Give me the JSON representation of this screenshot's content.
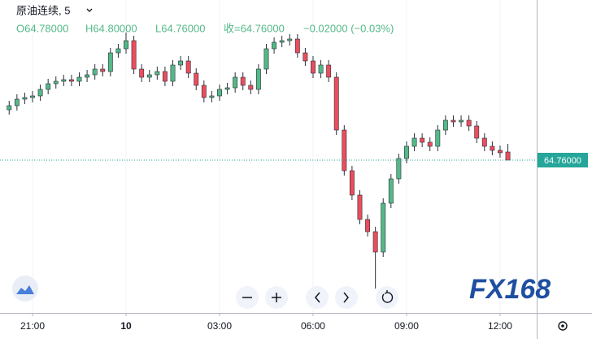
{
  "header": {
    "symbol": "原油连续, 5",
    "open": "O64.78000",
    "high": "H64.80000",
    "low": "L64.76000",
    "close": "收=64.76000",
    "change": "−0.02000 (−0.03%)"
  },
  "watermark": "FX168",
  "chart_data": {
    "type": "candlestick",
    "x": [
      -3.75,
      -3.5,
      -3.25,
      -3,
      -2.75,
      -2.5,
      -2.25,
      -2,
      -1.75,
      -1.5,
      -1.25,
      -1,
      -0.75,
      -0.5,
      -0.25,
      0,
      0.25,
      0.5,
      0.75,
      1,
      1.25,
      1.5,
      1.75,
      2,
      2.25,
      2.5,
      2.75,
      3,
      3.25,
      3.5,
      3.75,
      4,
      4.25,
      4.5,
      4.75,
      5,
      5.25,
      5.5,
      5.75,
      6,
      6.25,
      6.5,
      6.75,
      7,
      7.25,
      7.5,
      7.75,
      8,
      8.25,
      8.5,
      8.75,
      9,
      9.25,
      9.5,
      9.75,
      10,
      10.25,
      10.5,
      10.75,
      11,
      11.25,
      11.5,
      11.75,
      12,
      12.25
    ],
    "open": [
      64.884,
      64.894,
      64.91,
      64.914,
      64.918,
      64.934,
      64.948,
      64.954,
      64.958,
      64.954,
      64.964,
      64.97,
      64.984,
      64.978,
      65.024,
      65.034,
      65.054,
      64.984,
      64.964,
      64.97,
      64.978,
      64.954,
      64.994,
      65.004,
      64.974,
      64.944,
      64.914,
      64.918,
      64.934,
      64.938,
      64.964,
      64.944,
      64.934,
      64.984,
      65.034,
      65.05,
      65.054,
      65.058,
      65.024,
      65.004,
      64.974,
      64.994,
      64.964,
      64.834,
      64.734,
      64.674,
      64.614,
      64.584,
      64.534,
      64.654,
      64.714,
      64.764,
      64.794,
      64.814,
      64.804,
      64.794,
      64.834,
      64.858,
      64.854,
      64.858,
      64.844,
      64.814,
      64.794,
      64.784,
      64.78
    ],
    "high": [
      64.906,
      64.922,
      64.926,
      64.93,
      64.946,
      64.96,
      64.966,
      64.97,
      64.97,
      64.976,
      64.982,
      64.996,
      64.996,
      65.036,
      65.046,
      65.074,
      65.066,
      64.996,
      64.982,
      64.99,
      64.99,
      65.006,
      65.016,
      65.016,
      64.986,
      64.956,
      64.93,
      64.946,
      64.95,
      64.976,
      64.976,
      64.956,
      64.996,
      65.046,
      65.062,
      65.066,
      65.07,
      65.07,
      65.036,
      65.016,
      65.006,
      65.006,
      64.976,
      64.846,
      64.746,
      64.686,
      64.626,
      64.596,
      64.666,
      64.726,
      64.776,
      64.806,
      64.826,
      64.826,
      64.816,
      64.846,
      64.87,
      64.87,
      64.87,
      64.87,
      64.856,
      64.826,
      64.806,
      64.796,
      64.8
    ],
    "low": [
      64.872,
      64.882,
      64.898,
      64.902,
      64.906,
      64.922,
      64.936,
      64.942,
      64.942,
      64.942,
      64.952,
      64.958,
      64.966,
      64.966,
      65.012,
      65.022,
      64.972,
      64.952,
      64.952,
      64.958,
      64.942,
      64.942,
      64.982,
      64.962,
      64.932,
      64.902,
      64.902,
      64.906,
      64.922,
      64.926,
      64.932,
      64.922,
      64.922,
      64.972,
      65.022,
      65.038,
      65.042,
      65.012,
      64.992,
      64.962,
      64.962,
      64.952,
      64.822,
      64.722,
      64.662,
      64.602,
      64.572,
      64.444,
      64.522,
      64.642,
      64.702,
      64.752,
      64.782,
      64.792,
      64.782,
      64.782,
      64.822,
      64.842,
      64.842,
      64.832,
      64.802,
      64.782,
      64.772,
      64.766,
      64.76
    ],
    "close": [
      64.894,
      64.91,
      64.914,
      64.918,
      64.934,
      64.948,
      64.954,
      64.958,
      64.954,
      64.964,
      64.97,
      64.984,
      64.978,
      65.024,
      65.034,
      65.054,
      64.984,
      64.964,
      64.97,
      64.978,
      64.954,
      64.994,
      65.004,
      64.974,
      64.944,
      64.914,
      64.918,
      64.934,
      64.938,
      64.964,
      64.944,
      64.934,
      64.984,
      65.034,
      65.05,
      65.054,
      65.058,
      65.024,
      65.004,
      64.974,
      64.994,
      64.964,
      64.834,
      64.734,
      64.674,
      64.614,
      64.584,
      64.534,
      64.654,
      64.714,
      64.764,
      64.794,
      64.814,
      64.804,
      64.794,
      64.834,
      64.858,
      64.854,
      64.858,
      64.844,
      64.814,
      64.794,
      64.784,
      64.778,
      64.76
    ],
    "up_color": "#53b987",
    "down_color": "#eb4d5c",
    "wick_color": "#2a2e39",
    "xlim": [
      -4.044,
      13.175
    ],
    "ylim": [
      64.384,
      65.154
    ],
    "xticks": [
      {
        "value": -3,
        "label": "21:00"
      },
      {
        "value": 0,
        "label": "10"
      },
      {
        "value": 3,
        "label": "03:00"
      },
      {
        "value": 6,
        "label": "06:00"
      },
      {
        "value": 9,
        "label": "09:00"
      },
      {
        "value": 12,
        "label": "12:00"
      }
    ],
    "grid": true,
    "last_price": {
      "value": 64.76,
      "label": "64.76000"
    },
    "last_price_color": "#26a69a"
  }
}
